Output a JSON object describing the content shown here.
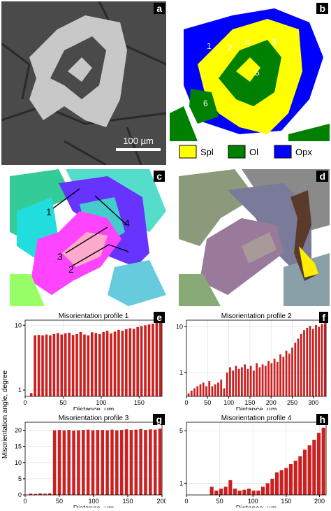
{
  "panels": {
    "a": {
      "tag": "a",
      "scalebar": "100 µm"
    },
    "b": {
      "tag": "b",
      "grain_labels": [
        "1",
        "2",
        "3",
        "4",
        "5",
        "6"
      ],
      "legend": [
        {
          "label": "Spl",
          "color": "#ffff00"
        },
        {
          "label": "Ol",
          "color": "#008000"
        },
        {
          "label": "Opx",
          "color": "#0000ff"
        }
      ]
    },
    "c": {
      "tag": "c",
      "profile_labels": [
        "1",
        "2",
        "3",
        "4"
      ]
    },
    "d": {
      "tag": "d"
    },
    "e": {
      "tag": "e"
    },
    "f": {
      "tag": "f"
    },
    "g": {
      "tag": "g"
    },
    "h": {
      "tag": "h"
    }
  },
  "shared_ylabel": "Misorientation angle, degree",
  "chart_data": [
    {
      "id": "e",
      "type": "bar",
      "title": "Misorientation profile 1",
      "xlabel": "Distance, µm",
      "ylabel": "",
      "log_y": true,
      "xlim": [
        0,
        180
      ],
      "ylim": [
        0.8,
        12
      ],
      "xticks": [
        0,
        50,
        100,
        150
      ],
      "yticks": [
        1,
        10
      ],
      "x": [
        8,
        13,
        18,
        23,
        28,
        33,
        38,
        43,
        48,
        53,
        58,
        63,
        68,
        73,
        78,
        83,
        88,
        93,
        98,
        103,
        108,
        113,
        118,
        123,
        128,
        133,
        138,
        143,
        148,
        153,
        158,
        163,
        168,
        173,
        178
      ],
      "values": [
        0.9,
        7.0,
        7.1,
        7.0,
        7.2,
        7.0,
        7.3,
        7.6,
        7.2,
        7.5,
        7.7,
        7.1,
        7.3,
        7.9,
        7.2,
        7.0,
        7.8,
        7.6,
        7.3,
        7.9,
        8.2,
        7.5,
        8.0,
        8.5,
        8.2,
        8.7,
        9.0,
        8.8,
        9.4,
        9.7,
        10.0,
        10.3,
        10.6,
        11.2,
        11.8
      ]
    },
    {
      "id": "f",
      "type": "bar",
      "title": "Misorientation profile 2",
      "xlabel": "Distance, µm",
      "ylabel": "",
      "log_y": true,
      "xlim": [
        0,
        330
      ],
      "ylim": [
        0.3,
        14
      ],
      "xticks": [
        0,
        50,
        100,
        150,
        200,
        250,
        300
      ],
      "yticks": [
        1,
        10
      ],
      "x": [
        5,
        12,
        19,
        26,
        33,
        40,
        47,
        54,
        61,
        68,
        75,
        82,
        89,
        96,
        103,
        110,
        117,
        124,
        131,
        138,
        145,
        152,
        159,
        166,
        173,
        180,
        187,
        194,
        201,
        208,
        215,
        222,
        229,
        236,
        243,
        250,
        257,
        264,
        271,
        278,
        285,
        292,
        299,
        306,
        313,
        320,
        327
      ],
      "values": [
        0.35,
        0.4,
        0.45,
        0.5,
        0.55,
        0.6,
        0.5,
        0.65,
        0.5,
        0.55,
        0.6,
        0.7,
        0.45,
        1.0,
        1.3,
        1.1,
        1.4,
        1.2,
        1.3,
        1.5,
        1.2,
        1.4,
        1.1,
        1.6,
        1.3,
        1.5,
        1.4,
        1.8,
        1.6,
        2.0,
        1.7,
        2.5,
        2.2,
        3.0,
        2.6,
        3.5,
        4.5,
        5.5,
        7.0,
        8.5,
        9.5,
        10.5,
        9.0,
        11.0,
        10.0,
        11.5,
        12.0
      ]
    },
    {
      "id": "g",
      "type": "bar",
      "title": "Misorientation profile 3",
      "xlabel": "Distance, µm",
      "ylabel": "",
      "log_y": false,
      "xlim": [
        0,
        200
      ],
      "ylim": [
        0,
        22.5
      ],
      "xticks": [
        0,
        50,
        100,
        150,
        200
      ],
      "yticks": [
        0,
        5,
        10,
        15,
        20
      ],
      "x": [
        8,
        15,
        22,
        29,
        36,
        43,
        50,
        57,
        64,
        71,
        78,
        85,
        92,
        99,
        106,
        113,
        120,
        127,
        134,
        141,
        148,
        155,
        162,
        169,
        176,
        183,
        190,
        197
      ],
      "values": [
        0.4,
        0.3,
        0.5,
        0.4,
        0.5,
        20.0,
        20.1,
        20.0,
        20.1,
        19.9,
        20.0,
        20.1,
        20.2,
        20.0,
        20.1,
        20.1,
        20.0,
        20.2,
        20.0,
        20.1,
        20.3,
        20.1,
        20.2,
        20.4,
        20.1,
        20.3,
        20.2,
        20.5
      ]
    },
    {
      "id": "h",
      "type": "bar",
      "title": "Misorientation profile 4",
      "xlabel": "Distance, µm",
      "ylabel": "",
      "log_y": true,
      "xlim": [
        0,
        210
      ],
      "ylim": [
        0.7,
        6.5
      ],
      "xticks": [
        0,
        50,
        100,
        150,
        200
      ],
      "yticks": [
        1,
        5
      ],
      "x": [
        38,
        45,
        52,
        59,
        66,
        73,
        80,
        87,
        94,
        101,
        108,
        115,
        122,
        129,
        136,
        143,
        150,
        157,
        164,
        171,
        178,
        185,
        192,
        199,
        206
      ],
      "values": [
        0.9,
        0.8,
        0.85,
        0.9,
        1.1,
        0.85,
        0.8,
        0.82,
        0.85,
        0.8,
        0.8,
        0.9,
        1.0,
        1.15,
        1.4,
        1.5,
        1.6,
        1.8,
        2.0,
        2.3,
        2.8,
        3.2,
        3.8,
        4.7,
        5.5
      ]
    }
  ]
}
